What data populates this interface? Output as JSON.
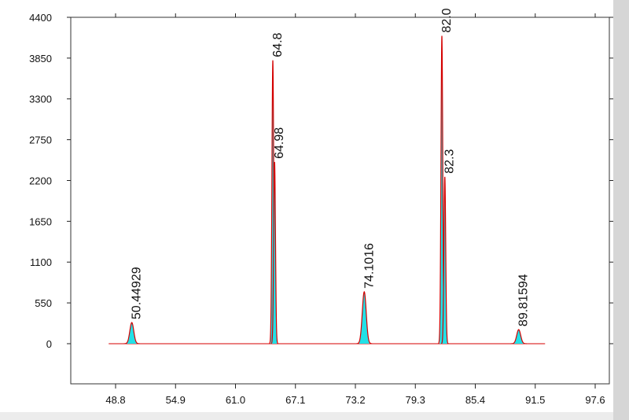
{
  "chart_data": {
    "type": "peaks",
    "xlim": [
      44.24,
      99.04
    ],
    "ylim": [
      -541,
      4400
    ],
    "xticks": [
      48.8,
      54.9,
      {
        "value": 61.0,
        "label": "61.0"
      },
      67.1,
      73.2,
      79.3,
      85.4,
      91.5,
      97.6
    ],
    "yticks": [
      0,
      550,
      1100,
      1650,
      2200,
      2750,
      3300,
      3850,
      4400
    ],
    "curve_range": [
      48.1,
      92.5
    ],
    "line_color": "#d40000",
    "fill_color": "#22e0e6",
    "peaks": [
      {
        "x": 50.44929,
        "height": 285,
        "label": "50.44929"
      },
      {
        "x": 64.8,
        "height": 3820,
        "label": "64.8"
      },
      {
        "x": 64.98,
        "height": 2450,
        "label": "64.98"
      },
      {
        "x": 74.1016,
        "height": 700,
        "label": "74.1016"
      },
      {
        "x": 82.0,
        "height": 4150,
        "label": "82.0"
      },
      {
        "x": 82.3,
        "height": 2250,
        "label": "82.3"
      },
      {
        "x": 89.81594,
        "height": 190,
        "label": "89.81594"
      }
    ]
  }
}
